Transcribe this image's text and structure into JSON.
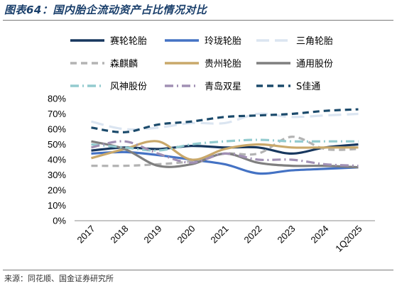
{
  "title": "图表64：国内胎企流动资产占比情况对比",
  "source": "来源：同花顺、国金证券研究所",
  "chart_data": {
    "type": "line",
    "categories": [
      "2017",
      "2018",
      "2019",
      "2020",
      "2021",
      "2022",
      "2023",
      "2024",
      "1Q2025"
    ],
    "ylim": [
      0,
      80
    ],
    "yticks": [
      "0%",
      "10%",
      "20%",
      "30%",
      "40%",
      "50%",
      "60%",
      "70%",
      "80%"
    ],
    "grid": false,
    "legend_position": "top",
    "series": [
      {
        "name": "赛轮轮胎",
        "values": [
          46,
          48,
          47,
          49,
          48,
          48,
          44,
          48,
          50
        ],
        "color": "#17375e",
        "dash": "solid"
      },
      {
        "name": "玲珑轮胎",
        "values": [
          44,
          45,
          43,
          40,
          37,
          31,
          33,
          34,
          35
        ],
        "color": "#4472c4",
        "dash": "solid"
      },
      {
        "name": "三角轮胎",
        "values": [
          65,
          60,
          61,
          64,
          64,
          70,
          68,
          69,
          70
        ],
        "color": "#dbe5f1",
        "dash": "longdash"
      },
      {
        "name": "森麒麟",
        "values": [
          36,
          36,
          37,
          39,
          44,
          44,
          55,
          47,
          47
        ],
        "color": "#b3b3b3",
        "dash": "dash"
      },
      {
        "name": "贵州轮胎",
        "values": [
          41,
          47,
          52,
          40,
          47,
          50,
          48,
          48,
          48
        ],
        "color": "#c9a86a",
        "dash": "solid"
      },
      {
        "name": "通用股份",
        "values": [
          52,
          47,
          36,
          37,
          44,
          38,
          36,
          36,
          35
        ],
        "color": "#7f7f7f",
        "dash": "solid"
      },
      {
        "name": "风神股份",
        "values": [
          50,
          48,
          46,
          50,
          52,
          53,
          52,
          52,
          52
        ],
        "color": "#93cbcf",
        "dash": "dashdot"
      },
      {
        "name": "青岛双星",
        "values": [
          48,
          52,
          44,
          38,
          44,
          40,
          40,
          37,
          36
        ],
        "color": "#a190b4",
        "dash": "dashdot"
      },
      {
        "name": "S佳通",
        "values": [
          61,
          58,
          63,
          65,
          68,
          69,
          70,
          72,
          73
        ],
        "color": "#1b4a6b",
        "dash": "dash"
      }
    ]
  }
}
